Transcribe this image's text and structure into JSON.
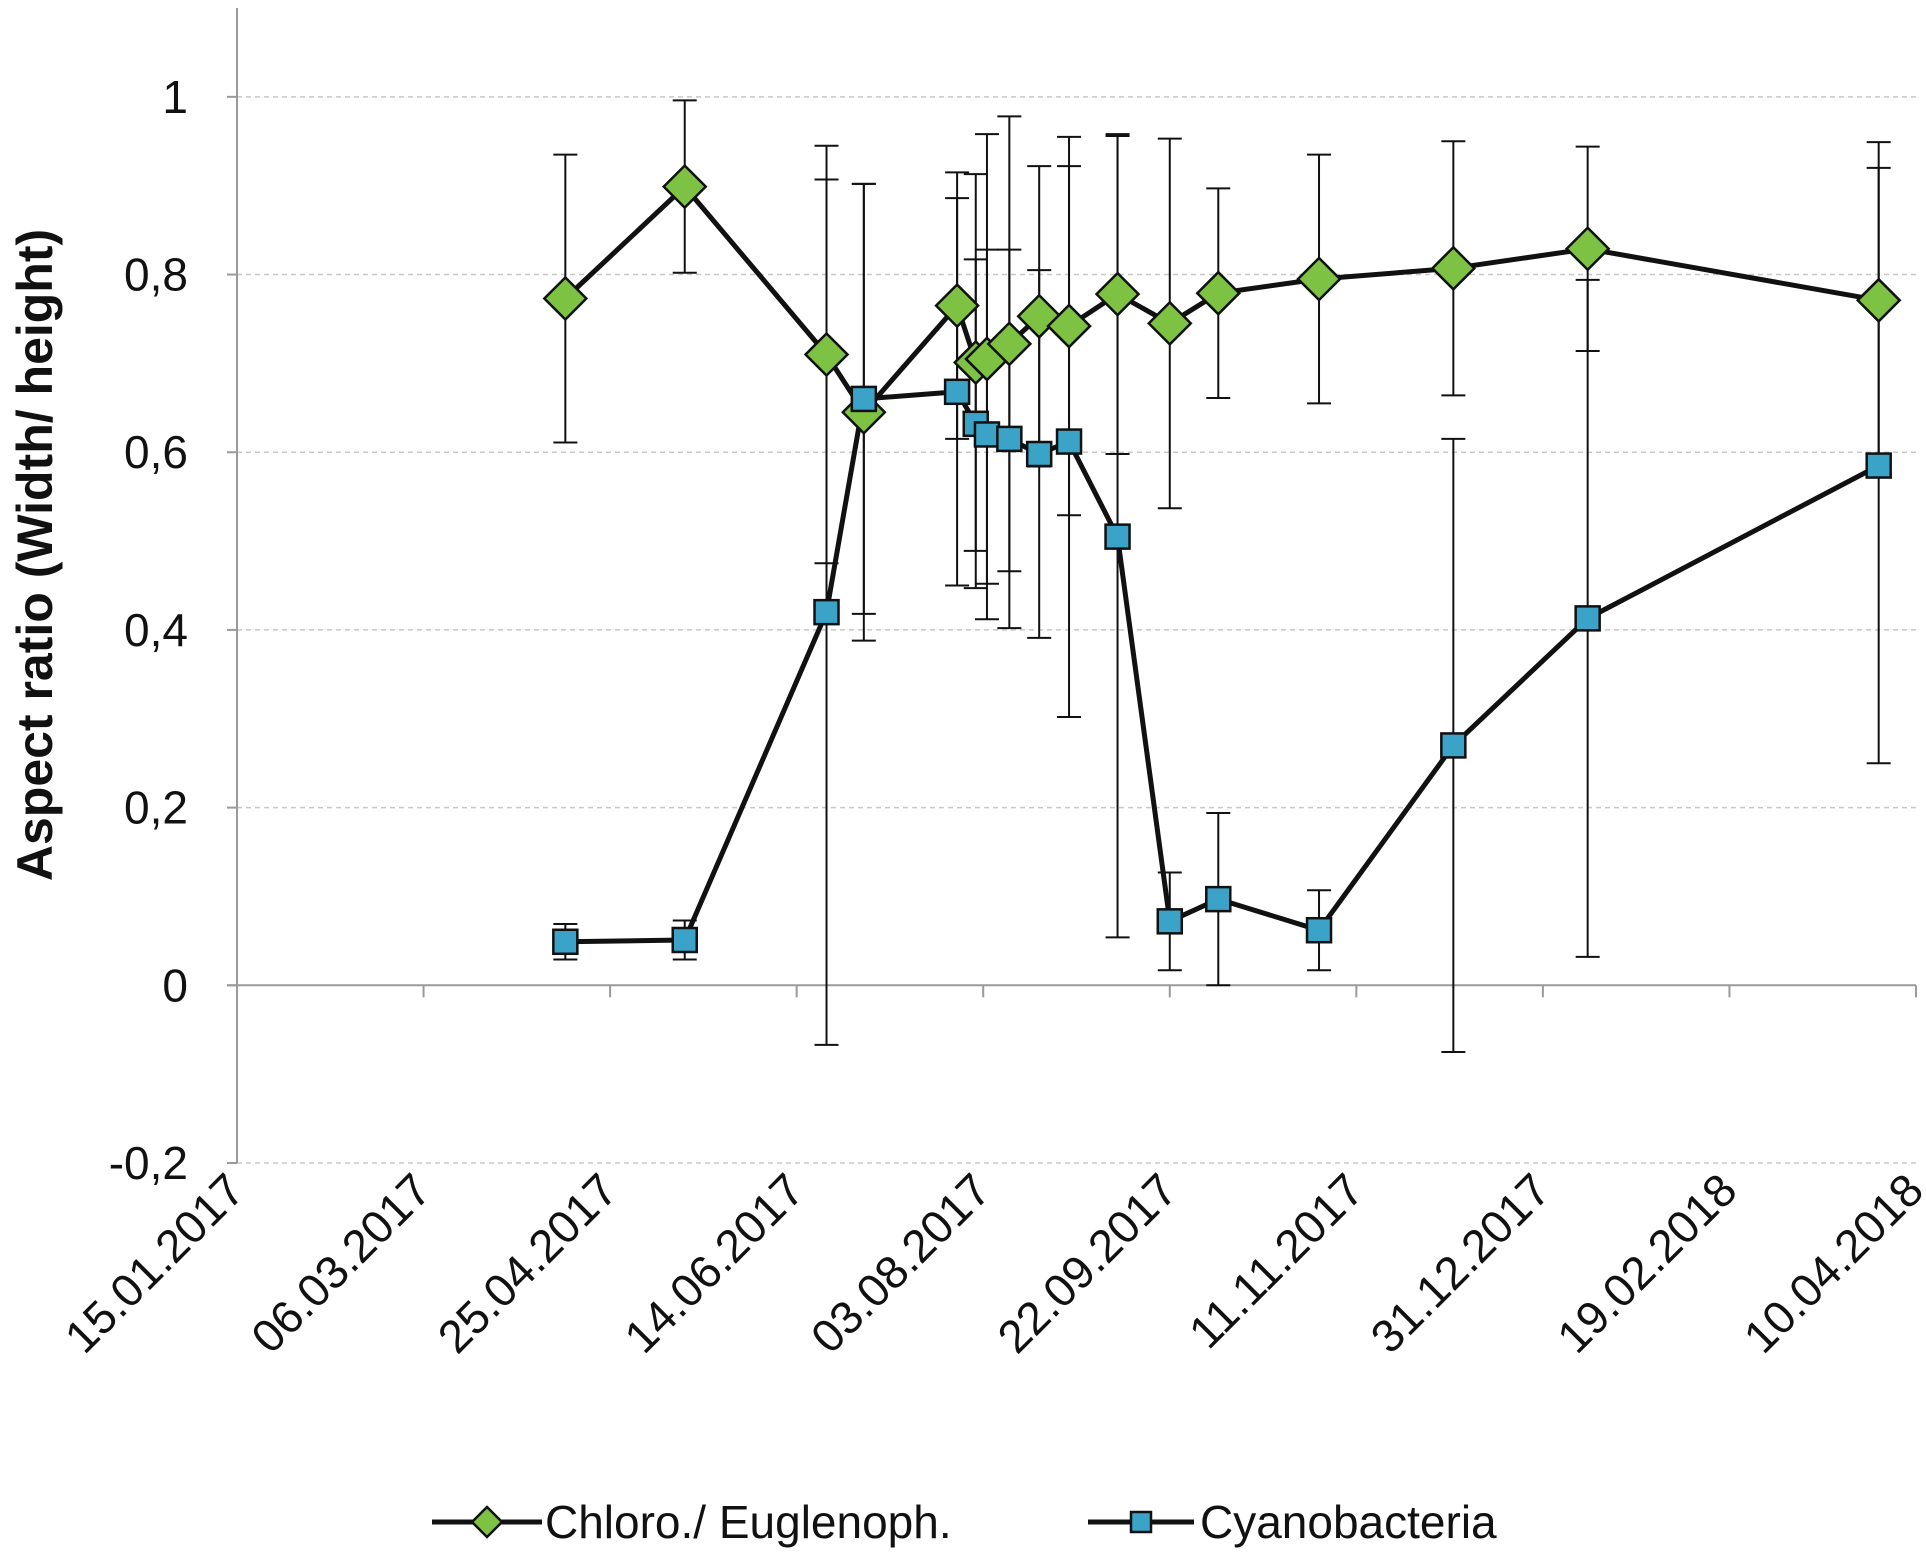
{
  "chart_data": {
    "type": "line",
    "ylabel": "Aspect ratio (Width/ height)",
    "xlabel": "",
    "x_axis": {
      "kind": "date",
      "range": [
        "2017-01-15",
        "2018-04-10"
      ],
      "tick_values": [
        "2017-01-15",
        "2017-03-06",
        "2017-04-25",
        "2017-06-14",
        "2017-08-03",
        "2017-09-22",
        "2017-11-11",
        "2017-12-31",
        "2018-02-19",
        "2018-04-10"
      ],
      "tick_labels": [
        "15.01.2017",
        "06.03.2017",
        "25.04.2017",
        "14.06.2017",
        "03.08.2017",
        "22.09.2017",
        "11.11.2017",
        "31.12.2017",
        "19.02.2018",
        "10.04.2018"
      ]
    },
    "y_axis": {
      "range": [
        -0.2,
        1.1
      ],
      "ticks": [
        -0.2,
        0,
        0.2,
        0.4,
        0.6,
        0.8,
        1
      ],
      "tick_labels": [
        "-0,2",
        "0",
        "0,2",
        "0,4",
        "0,6",
        "0,8",
        "1"
      ]
    },
    "grid": true,
    "legend_position": "bottom",
    "series": [
      {
        "name": "Chloro./ Euglenoph.",
        "color": "#7dc243",
        "marker": "diamond",
        "points": [
          {
            "x": "2017-04-13",
            "y": 0.773,
            "err": 0.162
          },
          {
            "x": "2017-05-15",
            "y": 0.899,
            "err": 0.097
          },
          {
            "x": "2017-06-22",
            "y": 0.71,
            "err": 0.235
          },
          {
            "x": "2017-07-02",
            "y": 0.645,
            "err": 0.257
          },
          {
            "x": "2017-07-27",
            "y": 0.765,
            "err": 0.15
          },
          {
            "x": "2017-08-01",
            "y": 0.701,
            "err": 0.212
          },
          {
            "x": "2017-08-04",
            "y": 0.705,
            "err": 0.253
          },
          {
            "x": "2017-08-10",
            "y": 0.722,
            "err": 0.256
          },
          {
            "x": "2017-08-18",
            "y": 0.753,
            "err": 0.169
          },
          {
            "x": "2017-08-26",
            "y": 0.742,
            "err": 0.213
          },
          {
            "x": "2017-09-08",
            "y": 0.778,
            "err": 0.18
          },
          {
            "x": "2017-09-22",
            "y": 0.745,
            "err": 0.208
          },
          {
            "x": "2017-10-05",
            "y": 0.779,
            "err": 0.118
          },
          {
            "x": "2017-11-01",
            "y": 0.795,
            "err": 0.14
          },
          {
            "x": "2017-12-07",
            "y": 0.807,
            "err": 0.143
          },
          {
            "x": "2018-01-12",
            "y": 0.829,
            "err": 0.115
          },
          {
            "x": "2018-03-31",
            "y": 0.771,
            "err": 0.178
          }
        ]
      },
      {
        "name": "Cyanobacteria",
        "color": "#3aa3c7",
        "marker": "square",
        "points": [
          {
            "x": "2017-04-13",
            "y": 0.049,
            "err": 0.02
          },
          {
            "x": "2017-05-15",
            "y": 0.051,
            "err": 0.022
          },
          {
            "x": "2017-06-22",
            "y": 0.42,
            "err": 0.487
          },
          {
            "x": "2017-07-02",
            "y": 0.66,
            "err": 0.242
          },
          {
            "x": "2017-07-27",
            "y": 0.668,
            "err": 0.218
          },
          {
            "x": "2017-08-01",
            "y": 0.632,
            "err": 0.185
          },
          {
            "x": "2017-08-04",
            "y": 0.62,
            "err": 0.208
          },
          {
            "x": "2017-08-10",
            "y": 0.615,
            "err": 0.213
          },
          {
            "x": "2017-08-18",
            "y": 0.598,
            "err": 0.207
          },
          {
            "x": "2017-08-26",
            "y": 0.612,
            "err": 0.31
          },
          {
            "x": "2017-09-08",
            "y": 0.505,
            "err": 0.451
          },
          {
            "x": "2017-09-22",
            "y": 0.072,
            "err": 0.055
          },
          {
            "x": "2017-10-05",
            "y": 0.097,
            "err": 0.097
          },
          {
            "x": "2017-11-01",
            "y": 0.062,
            "err": 0.045
          },
          {
            "x": "2017-12-07",
            "y": 0.27,
            "err": 0.345
          },
          {
            "x": "2018-01-12",
            "y": 0.413,
            "err": 0.381
          },
          {
            "x": "2018-03-31",
            "y": 0.585,
            "err": 0.335
          }
        ]
      }
    ]
  }
}
